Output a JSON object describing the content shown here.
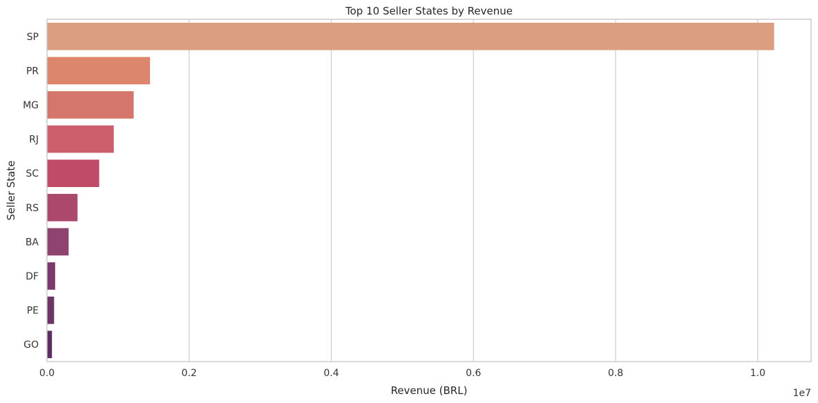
{
  "chart_data": {
    "type": "bar",
    "orientation": "horizontal",
    "title": "Top 10 Seller States by Revenue",
    "xlabel": "Revenue (BRL)",
    "ylabel": "Seller State",
    "x_scale_label": "1e7",
    "categories": [
      "SP",
      "PR",
      "MG",
      "RJ",
      "SC",
      "RS",
      "BA",
      "DF",
      "PE",
      "GO"
    ],
    "values": [
      10230000,
      1450000,
      1220000,
      940000,
      735000,
      430000,
      305000,
      115000,
      100000,
      70000
    ],
    "xlim": [
      0,
      10750000
    ],
    "xticks": [
      0,
      2000000,
      4000000,
      6000000,
      8000000,
      10000000
    ],
    "xtick_labels": [
      "0.0",
      "0.2",
      "0.4",
      "0.6",
      "0.8",
      "1.0"
    ],
    "grid": "vertical",
    "legend": "none",
    "colors": [
      "#DC9E80",
      "#DC876D",
      "#D4766B",
      "#CB5F6A",
      "#BF4B68",
      "#AC476E",
      "#8F4470",
      "#7B386D",
      "#6D3566",
      "#5E2D63"
    ],
    "axis_color": "#cccccc",
    "grid_color": "#cccccc"
  }
}
